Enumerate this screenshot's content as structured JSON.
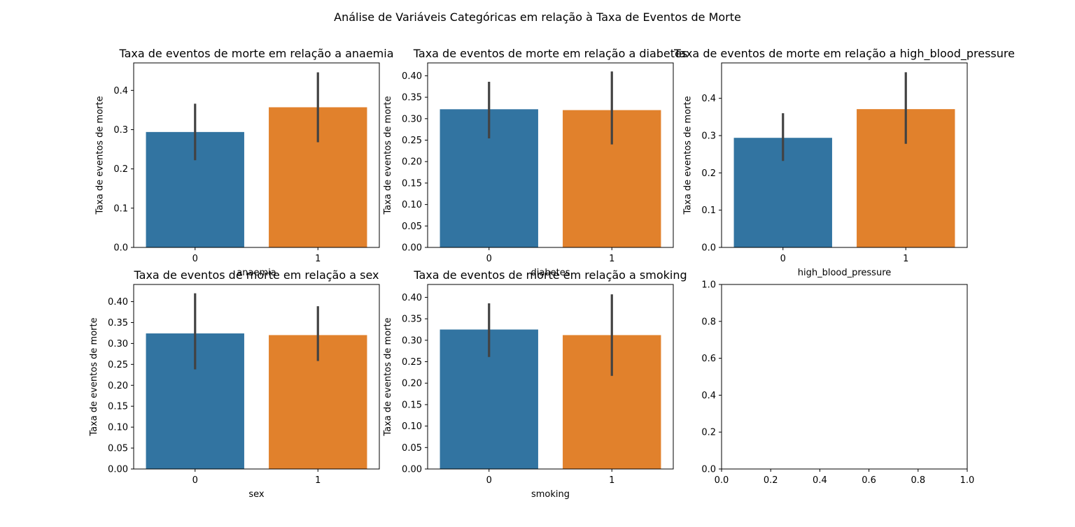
{
  "suptitle": "Análise de Variáveis Categóricas em relação à Taxa de Eventos de Morte",
  "colors": {
    "bar_0": "#3274a1",
    "bar_1": "#e1812c",
    "errorbar": "#424242",
    "axes": "#000000"
  },
  "chart_data": [
    {
      "type": "bar",
      "title": "Taxa de eventos de morte em relação a anaemia",
      "xlabel": "anaemia",
      "ylabel": "Taxa de eventos de morte",
      "categories": [
        "0",
        "1"
      ],
      "values": [
        0.294,
        0.357
      ],
      "ci": [
        [
          0.222,
          0.366
        ],
        [
          0.268,
          0.446
        ]
      ],
      "ylim": [
        0,
        0.47
      ],
      "yticks": [
        0.0,
        0.1,
        0.2,
        0.3,
        0.4
      ],
      "yticklabels": [
        "0.0",
        "0.1",
        "0.2",
        "0.3",
        "0.4"
      ]
    },
    {
      "type": "bar",
      "title": "Taxa de eventos de morte em relação a diabetes",
      "xlabel": "diabetes",
      "ylabel": "Taxa de eventos de morte",
      "categories": [
        "0",
        "1"
      ],
      "values": [
        0.322,
        0.32
      ],
      "ci": [
        [
          0.254,
          0.386
        ],
        [
          0.24,
          0.41
        ]
      ],
      "ylim": [
        0,
        0.43
      ],
      "yticks": [
        0.0,
        0.05,
        0.1,
        0.15,
        0.2,
        0.25,
        0.3,
        0.35,
        0.4
      ],
      "yticklabels": [
        "0.00",
        "0.05",
        "0.10",
        "0.15",
        "0.20",
        "0.25",
        "0.30",
        "0.35",
        "0.40"
      ]
    },
    {
      "type": "bar",
      "title": "Taxa de eventos de morte em relação a high_blood_pressure",
      "xlabel": "high_blood_pressure",
      "ylabel": "Taxa de eventos de morte",
      "categories": [
        "0",
        "1"
      ],
      "values": [
        0.294,
        0.371
      ],
      "ci": [
        [
          0.232,
          0.36
        ],
        [
          0.278,
          0.47
        ]
      ],
      "ylim": [
        0,
        0.495
      ],
      "yticks": [
        0.0,
        0.1,
        0.2,
        0.3,
        0.4
      ],
      "yticklabels": [
        "0.0",
        "0.1",
        "0.2",
        "0.3",
        "0.4"
      ]
    },
    {
      "type": "bar",
      "title": "Taxa de eventos de morte em relação a sex",
      "xlabel": "sex",
      "ylabel": "Taxa de eventos de morte",
      "categories": [
        "0",
        "1"
      ],
      "values": [
        0.324,
        0.32
      ],
      "ci": [
        [
          0.238,
          0.42
        ],
        [
          0.258,
          0.389
        ]
      ],
      "ylim": [
        0,
        0.441
      ],
      "yticks": [
        0.0,
        0.05,
        0.1,
        0.15,
        0.2,
        0.25,
        0.3,
        0.35,
        0.4
      ],
      "yticklabels": [
        "0.00",
        "0.05",
        "0.10",
        "0.15",
        "0.20",
        "0.25",
        "0.30",
        "0.35",
        "0.40"
      ]
    },
    {
      "type": "bar",
      "title": "Taxa de eventos de morte em relação a smoking",
      "xlabel": "smoking",
      "ylabel": "Taxa de eventos de morte",
      "categories": [
        "0",
        "1"
      ],
      "values": [
        0.325,
        0.312
      ],
      "ci": [
        [
          0.261,
          0.386
        ],
        [
          0.217,
          0.407
        ]
      ],
      "ylim": [
        0,
        0.43
      ],
      "yticks": [
        0.0,
        0.05,
        0.1,
        0.15,
        0.2,
        0.25,
        0.3,
        0.35,
        0.4
      ],
      "yticklabels": [
        "0.00",
        "0.05",
        "0.10",
        "0.15",
        "0.20",
        "0.25",
        "0.30",
        "0.35",
        "0.40"
      ]
    },
    {
      "type": "bar",
      "title": "",
      "xlabel": "",
      "ylabel": "",
      "categories": [],
      "values": [],
      "ci": [],
      "xlim": [
        0,
        1
      ],
      "ylim": [
        0,
        1
      ],
      "xticks": [
        0.0,
        0.2,
        0.4,
        0.6,
        0.8,
        1.0
      ],
      "xticklabels": [
        "0.0",
        "0.2",
        "0.4",
        "0.6",
        "0.8",
        "1.0"
      ],
      "yticks": [
        0.0,
        0.2,
        0.4,
        0.6,
        0.8,
        1.0
      ],
      "yticklabels": [
        "0.0",
        "0.2",
        "0.4",
        "0.6",
        "0.8",
        "1.0"
      ]
    }
  ]
}
